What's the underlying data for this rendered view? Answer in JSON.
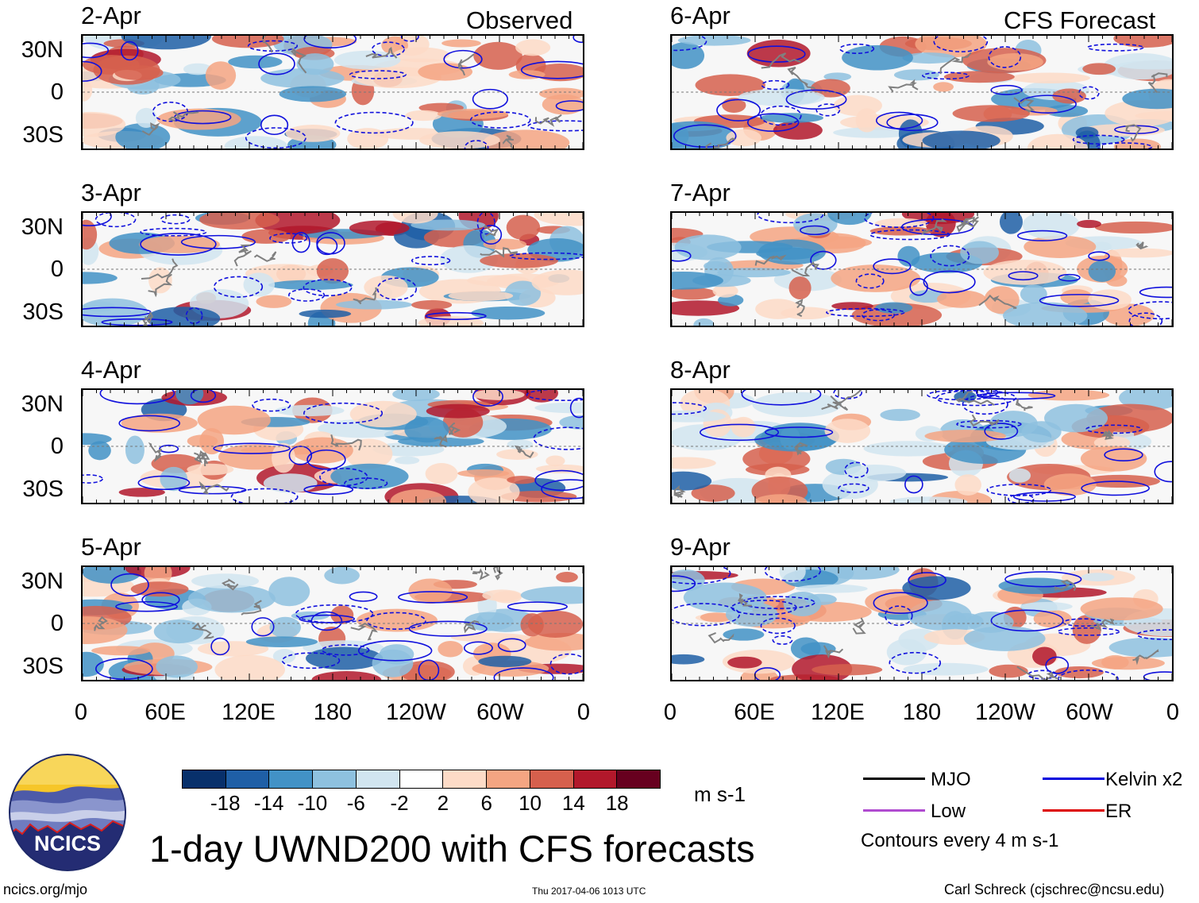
{
  "columns": [
    {
      "title": "Observed",
      "panels": [
        "2-Apr",
        "3-Apr",
        "4-Apr",
        "5-Apr"
      ]
    },
    {
      "title": "CFS Forecast",
      "panels": [
        "6-Apr",
        "7-Apr",
        "8-Apr",
        "9-Apr"
      ]
    }
  ],
  "lat_labels": [
    "30N",
    "0",
    "30S"
  ],
  "lon_labels": [
    "0",
    "60E",
    "120E",
    "180",
    "120W",
    "60W",
    "0"
  ],
  "colorbar": {
    "colors": [
      "#08306b",
      "#1f5fa6",
      "#4292c6",
      "#8ec1df",
      "#d1e5f0",
      "#ffffff",
      "#fddbc7",
      "#f4a582",
      "#d6604d",
      "#b2182b",
      "#67001f"
    ],
    "labels": [
      "-18",
      "-14",
      "-10",
      "-6",
      "-2",
      "2",
      "6",
      "10",
      "14",
      "18"
    ],
    "units": "m s-1"
  },
  "legend": {
    "items": [
      {
        "label": "MJO",
        "color": "#000000"
      },
      {
        "label": "Kelvin x2",
        "color": "#0000dd"
      },
      {
        "label": "Low",
        "color": "#b04bd0"
      },
      {
        "label": "ER",
        "color": "#dd0000"
      }
    ],
    "note": "Contours every 4 m s-1"
  },
  "logo_text": "NCICS",
  "title": "1-day UWND200 with CFS forecasts",
  "footer": {
    "left": "ncics.org/mjo",
    "center": "Thu 2017-04-06 1013 UTC",
    "right": "Carl Schreck (cjschrec@ncsu.edu)"
  }
}
